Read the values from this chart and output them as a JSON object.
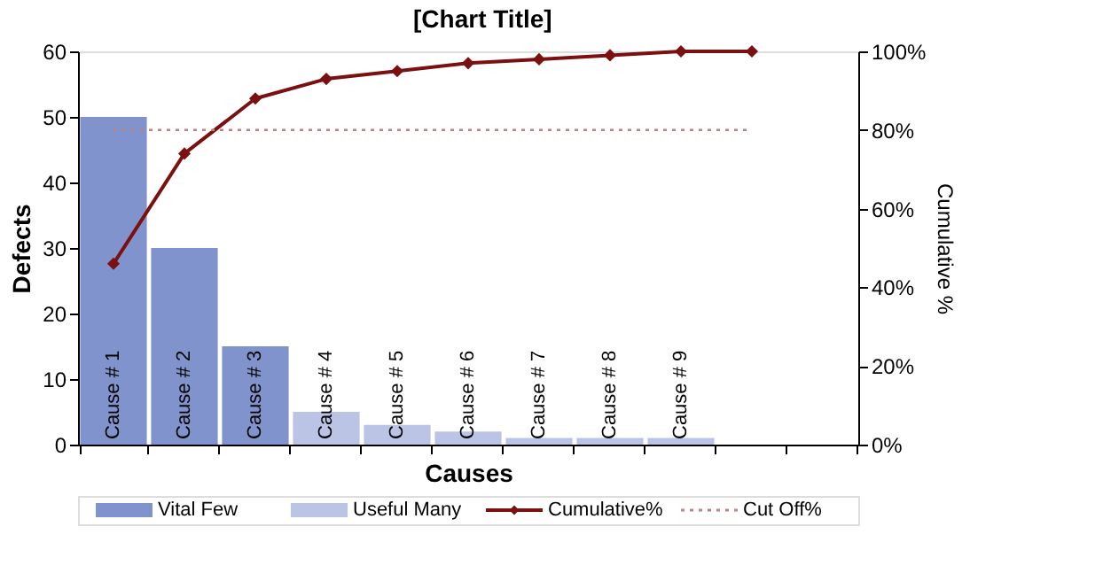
{
  "chart_data": {
    "type": "bar",
    "title": "[Chart Title]",
    "xlabel": "Causes",
    "ylabel": "Defects",
    "y2label": "Cumulative %",
    "categories": [
      "Cause # 1",
      "Cause # 2",
      "Cause # 3",
      "Cause # 4",
      "Cause # 5",
      "Cause # 6",
      "Cause # 7",
      "Cause # 8",
      "Cause # 9",
      null,
      null
    ],
    "series": [
      {
        "name": "Vital Few",
        "color": "#8093cc",
        "values": [
          50,
          30,
          15,
          null,
          null,
          null,
          null,
          null,
          null,
          null,
          null
        ]
      },
      {
        "name": "Useful Many",
        "color": "#bcc4e6",
        "values": [
          null,
          null,
          null,
          5,
          3,
          2,
          1,
          1,
          1,
          null,
          null
        ]
      },
      {
        "name": "Cumulative%",
        "type": "line",
        "axis": "y2",
        "color": "#7b1010",
        "marker": "diamond",
        "values": [
          46,
          74,
          88,
          93,
          95,
          97,
          98,
          99,
          100,
          100,
          null
        ]
      }
    ],
    "ylim": [
      0,
      60
    ],
    "yticks": [
      0,
      10,
      20,
      30,
      40,
      50,
      60
    ],
    "y2lim": [
      0,
      100
    ],
    "y2ticks": [
      {
        "value": 0,
        "label": "0%"
      },
      {
        "value": 20,
        "label": "20%"
      },
      {
        "value": 40,
        "label": "40%"
      },
      {
        "value": 60,
        "label": "60%"
      },
      {
        "value": 80,
        "label": "80%"
      },
      {
        "value": 100,
        "label": "100%"
      }
    ],
    "ref_lines": [
      {
        "axis": "y2",
        "value": 80,
        "label": "Cut Off%",
        "color": "#c08080",
        "line_style": "dotted"
      }
    ],
    "grid": false,
    "legend": "bottom"
  }
}
